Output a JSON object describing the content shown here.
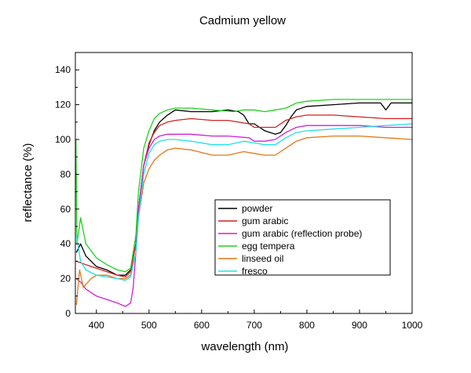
{
  "chart_data": {
    "type": "line",
    "title": "Cadmium yellow",
    "xlabel": "wavelength (nm)",
    "ylabel": "reflectance (%)",
    "xlim": [
      360,
      1000
    ],
    "ylim": [
      0,
      150
    ],
    "xticks": [
      400,
      500,
      600,
      700,
      800,
      900,
      1000
    ],
    "yticks": [
      0,
      20,
      40,
      60,
      80,
      100,
      120,
      140
    ],
    "grid": false,
    "legend_position": "inside-lower-right",
    "series": [
      {
        "name": "powder",
        "color": "#000000",
        "x": [
          362,
          370,
          380,
          400,
          420,
          440,
          455,
          465,
          475,
          480,
          490,
          500,
          510,
          520,
          535,
          550,
          580,
          620,
          650,
          670,
          680,
          690,
          700,
          710,
          720,
          740,
          750,
          760,
          770,
          780,
          800,
          850,
          900,
          940,
          950,
          960,
          1000
        ],
        "y": [
          35,
          40,
          33,
          27,
          25,
          22,
          22,
          25,
          40,
          60,
          85,
          97,
          105,
          110,
          114,
          117,
          116,
          116,
          117,
          116,
          114,
          109,
          109,
          107,
          105,
          103,
          104,
          108,
          113,
          117,
          119,
          120,
          121,
          121,
          117,
          121,
          121
        ]
      },
      {
        "name": "gum arabic",
        "color": "#d42020",
        "x": [
          362,
          380,
          400,
          420,
          440,
          455,
          465,
          475,
          480,
          490,
          500,
          510,
          520,
          535,
          550,
          580,
          620,
          650,
          690,
          700,
          720,
          740,
          760,
          780,
          800,
          850,
          900,
          950,
          1000
        ],
        "y": [
          30,
          28,
          26,
          24,
          22,
          21,
          24,
          40,
          60,
          85,
          98,
          104,
          108,
          110,
          111,
          112,
          111,
          111,
          109,
          107,
          107,
          107,
          111,
          113,
          114,
          114,
          113,
          112,
          112
        ]
      },
      {
        "name": "gum arabic (reflection probe)",
        "color": "#d020d0",
        "x": [
          362,
          370,
          380,
          400,
          420,
          440,
          455,
          465,
          470,
          475,
          480,
          490,
          500,
          510,
          520,
          535,
          550,
          580,
          620,
          650,
          690,
          700,
          720,
          740,
          760,
          780,
          800,
          850,
          900,
          950,
          1000
        ],
        "y": [
          20,
          18,
          14,
          10,
          8,
          6,
          4,
          6,
          15,
          35,
          60,
          85,
          95,
          100,
          102,
          103,
          103,
          103,
          102,
          102,
          101,
          99,
          99,
          100,
          104,
          107,
          108,
          108,
          108,
          107,
          107
        ]
      },
      {
        "name": "egg tempera",
        "color": "#20d020",
        "x": [
          361,
          363,
          370,
          380,
          400,
          420,
          440,
          455,
          465,
          475,
          480,
          490,
          500,
          510,
          520,
          535,
          550,
          580,
          620,
          660,
          680,
          700,
          720,
          740,
          760,
          780,
          800,
          850,
          900,
          950,
          1000
        ],
        "y": [
          100,
          40,
          55,
          40,
          32,
          28,
          25,
          24,
          26,
          45,
          70,
          95,
          105,
          112,
          115,
          117,
          118,
          118,
          117,
          116,
          117,
          117,
          116,
          117,
          118,
          121,
          122,
          123,
          123,
          123,
          123
        ]
      },
      {
        "name": "linseed oil",
        "color": "#e07818",
        "x": [
          362,
          368,
          375,
          390,
          400,
          420,
          440,
          455,
          465,
          475,
          480,
          490,
          500,
          510,
          520,
          535,
          550,
          580,
          620,
          650,
          680,
          700,
          720,
          740,
          760,
          780,
          800,
          850,
          900,
          950,
          1000
        ],
        "y": [
          5,
          25,
          15,
          20,
          22,
          22,
          20,
          20,
          22,
          35,
          55,
          75,
          83,
          88,
          91,
          94,
          95,
          94,
          91,
          91,
          93,
          92,
          91,
          91,
          95,
          99,
          101,
          102,
          102,
          101,
          100
        ]
      },
      {
        "name": "fresco",
        "color": "#20e0e8",
        "x": [
          362,
          370,
          380,
          400,
          420,
          440,
          455,
          465,
          475,
          480,
          490,
          500,
          510,
          520,
          535,
          550,
          580,
          620,
          650,
          680,
          700,
          720,
          740,
          760,
          780,
          800,
          850,
          900,
          950,
          1000
        ],
        "y": [
          45,
          30,
          25,
          22,
          21,
          20,
          19,
          21,
          35,
          55,
          80,
          92,
          97,
          99,
          100,
          100,
          99,
          97,
          97,
          99,
          98,
          97,
          97,
          101,
          104,
          105,
          106,
          107,
          108,
          109
        ]
      }
    ]
  }
}
